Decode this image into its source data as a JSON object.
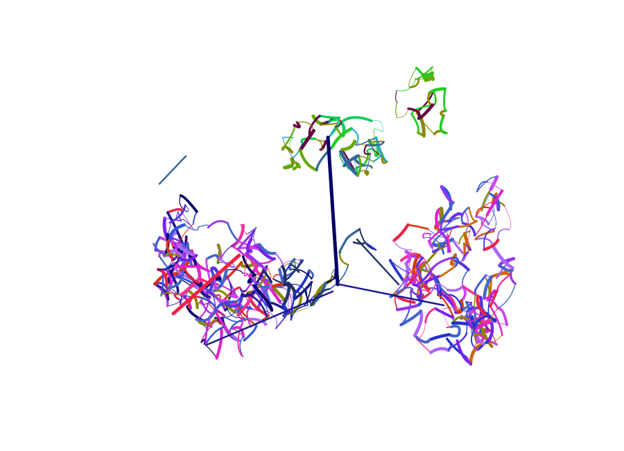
{
  "figure": {
    "type": "3d-line-trace",
    "background": "#ffffff",
    "palette": [
      "#000066",
      "#1a1a8c",
      "#2233cc",
      "#3355dd",
      "#5533dd",
      "#7722ee",
      "#9933ee",
      "#bb22dd",
      "#dd22cc",
      "#ee3399",
      "#ee2244",
      "#dd3311",
      "#cc6600",
      "#888800",
      "#66aa00",
      "#22cc22",
      "#11cc55",
      "#22aacc",
      "#55ccdd",
      "#660044",
      "#aa66ff",
      "#cc44ee",
      "#4466cc",
      "#336699",
      "#223366"
    ]
  }
}
